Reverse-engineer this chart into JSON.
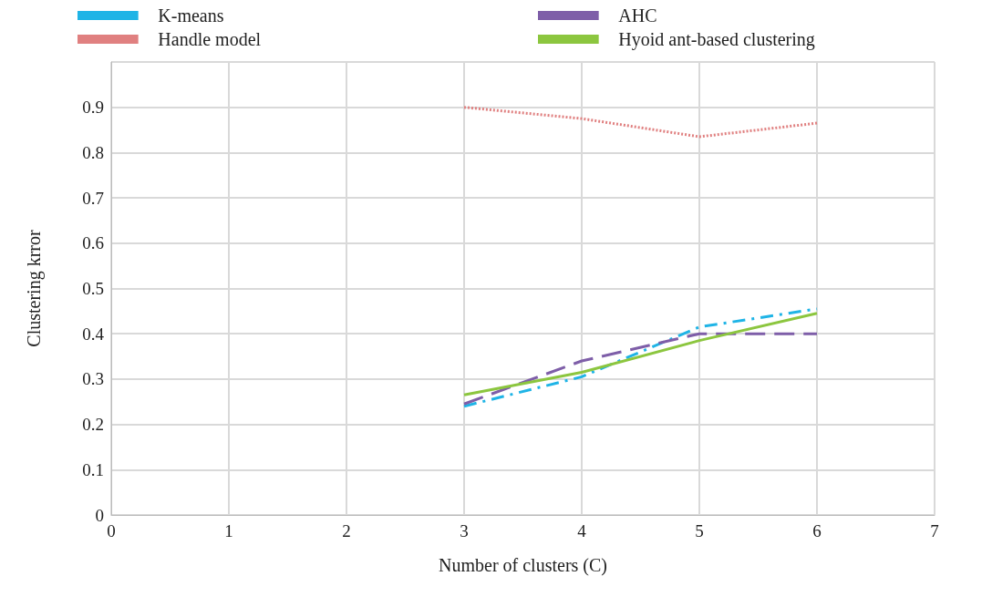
{
  "chart_data": {
    "type": "line",
    "xlabel": "Number of clusters (C)",
    "ylabel": "Clustering krror",
    "x": [
      3,
      4,
      5,
      6
    ],
    "series": [
      {
        "name": "K-means",
        "color": "#1fb4e6",
        "line_style": "dashdot",
        "values": [
          0.24,
          0.305,
          0.415,
          0.455
        ]
      },
      {
        "name": "AHC",
        "color": "#7e5ea8",
        "line_style": "dashed",
        "values": [
          0.245,
          0.34,
          0.4,
          0.4
        ]
      },
      {
        "name": "Handle model",
        "color": "#e08080",
        "line_style": "dotted",
        "values": [
          0.9,
          0.875,
          0.835,
          0.865
        ]
      },
      {
        "name": "Hyoid ant-based clustering",
        "color": "#8cc63f",
        "line_style": "solid",
        "values": [
          0.265,
          0.315,
          0.385,
          0.445
        ]
      }
    ],
    "xlim": [
      0,
      7
    ],
    "xticks": [
      0,
      1,
      2,
      3,
      4,
      5,
      6,
      7
    ],
    "ylim": [
      0,
      1
    ],
    "yticks": [
      0,
      0.1,
      0.2,
      0.3,
      0.4,
      0.5,
      0.6,
      0.7,
      0.8,
      0.9,
      {
        "value": 1,
        "label": null
      }
    ],
    "grid": true,
    "legend": "top",
    "marker": "none"
  }
}
